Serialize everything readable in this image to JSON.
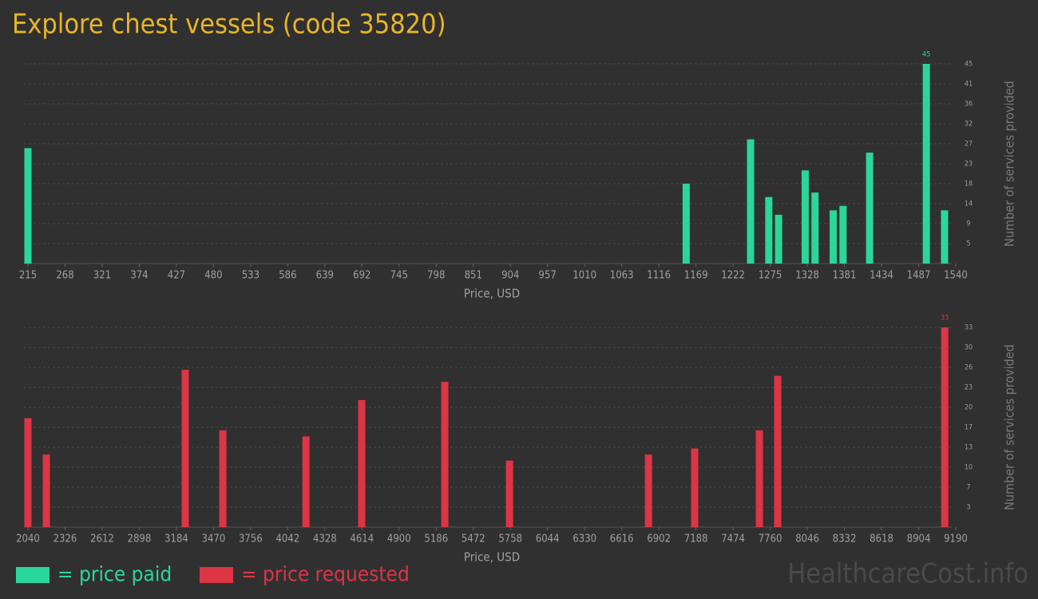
{
  "title": "Explore chest vessels (code 35820)",
  "watermark": "HealthcareCost.info",
  "chart_data": [
    {
      "type": "bar",
      "x_label": "Price, USD",
      "y_label": "Number of services provided",
      "grid": true,
      "x": [
        215,
        1155,
        1247,
        1273,
        1287,
        1325,
        1339,
        1365,
        1379,
        1417,
        1498,
        1524
      ],
      "series": [
        {
          "name": "= price paid",
          "color": "#2bd69a",
          "values": [
            26,
            18,
            28,
            15,
            11,
            21,
            16,
            12,
            13,
            25,
            45,
            12
          ]
        }
      ],
      "xlim": [
        215,
        1540
      ],
      "xticks": [
        215,
        268,
        321,
        374,
        427,
        480,
        533,
        586,
        639,
        692,
        745,
        798,
        851,
        904,
        957,
        1010,
        1063,
        1116,
        1169,
        1222,
        1275,
        1328,
        1381,
        1434,
        1487,
        1540
      ],
      "ylim": [
        0,
        45
      ],
      "yticks": [
        {
          "value": 4.5,
          "label": "5"
        },
        9,
        {
          "value": 13.5,
          "label": "14"
        },
        18,
        {
          "value": 22.5,
          "label": "23"
        },
        27,
        {
          "value": 31.5,
          "label": "32"
        },
        36,
        {
          "value": 40.5,
          "label": "41"
        },
        45
      ]
    },
    {
      "type": "bar",
      "x_label": "Price, USD",
      "y_label": "Number of services provided",
      "grid": true,
      "x": [
        2040,
        2182,
        3252,
        3542,
        4182,
        4612,
        5252,
        5751,
        6822,
        7178,
        7677,
        7818,
        9105
      ],
      "series": [
        {
          "name": "= price requested",
          "color": "#dc3545",
          "values": [
            18,
            12,
            26,
            16,
            15,
            21,
            24,
            11,
            12,
            13,
            16,
            25,
            33
          ]
        }
      ],
      "xlim": [
        2040,
        9190
      ],
      "xticks": [
        2040,
        2326,
        2612,
        2898,
        3184,
        3470,
        3756,
        4042,
        4328,
        4614,
        4900,
        5186,
        5472,
        5758,
        6044,
        6330,
        6616,
        6902,
        7188,
        7474,
        7760,
        8046,
        8332,
        8618,
        8904,
        9190
      ],
      "ylim": [
        0,
        33
      ],
      "yticks": [
        {
          "value": 3.3,
          "label": "3"
        },
        {
          "value": 6.6,
          "label": "7"
        },
        {
          "value": 9.9,
          "label": "10"
        },
        {
          "value": 13.2,
          "label": "13"
        },
        {
          "value": 16.5,
          "label": "17"
        },
        {
          "value": 19.8,
          "label": "20"
        },
        {
          "value": 23.1,
          "label": "23"
        },
        {
          "value": 26.4,
          "label": "26"
        },
        {
          "value": 29.7,
          "label": "30"
        },
        33
      ]
    }
  ]
}
